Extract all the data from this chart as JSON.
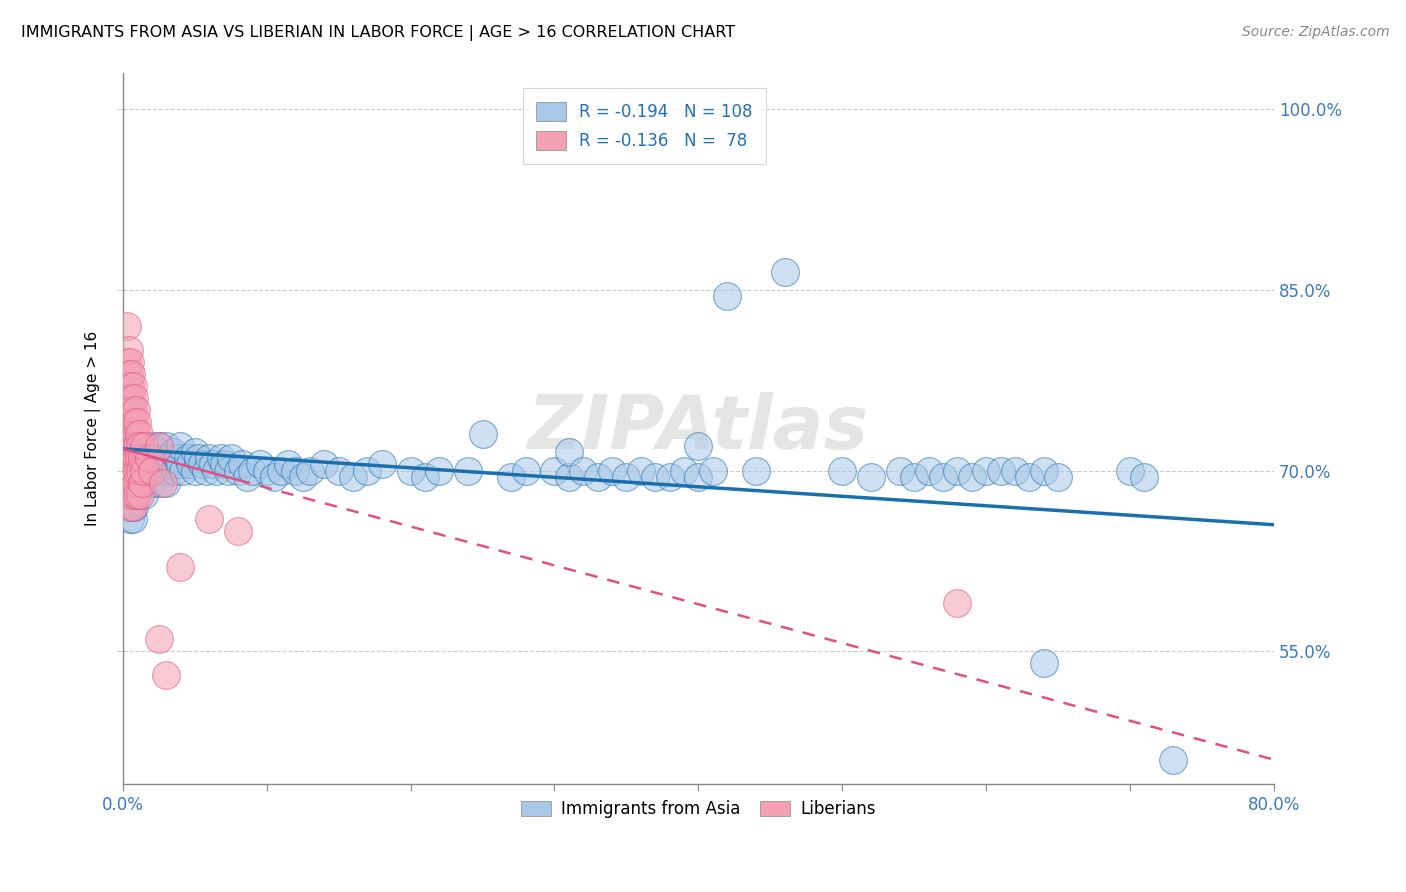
{
  "title": "IMMIGRANTS FROM ASIA VS LIBERIAN IN LABOR FORCE | AGE > 16 CORRELATION CHART",
  "source": "Source: ZipAtlas.com",
  "ylabel": "In Labor Force | Age > 16",
  "ytick_labels": [
    "55.0%",
    "70.0%",
    "85.0%",
    "100.0%"
  ],
  "legend_label_blue": "Immigrants from Asia",
  "legend_label_pink": "Liberians",
  "watermark": "ZIPAtlas",
  "blue_color": "#a8c8e8",
  "pink_color": "#f4a0b5",
  "trendline_blue": "#1a6faf",
  "trendline_pink": "#e05080",
  "xlim": [
    0.0,
    0.8
  ],
  "ylim": [
    0.44,
    1.03
  ],
  "ytick_positions": [
    0.55,
    0.7,
    0.85,
    1.0
  ],
  "blue_trend_x0": 0.0,
  "blue_trend_x1": 0.8,
  "blue_trend_y0": 0.718,
  "blue_trend_y1": 0.655,
  "pink_trend_x0": 0.0,
  "pink_trend_x1": 0.8,
  "pink_trend_y0": 0.718,
  "pink_trend_y1": 0.46,
  "blue_scatter": [
    [
      0.002,
      0.7
    ],
    [
      0.003,
      0.69
    ],
    [
      0.003,
      0.71
    ],
    [
      0.004,
      0.695
    ],
    [
      0.004,
      0.715
    ],
    [
      0.004,
      0.68
    ],
    [
      0.005,
      0.7
    ],
    [
      0.005,
      0.72
    ],
    [
      0.005,
      0.66
    ],
    [
      0.005,
      0.74
    ],
    [
      0.006,
      0.705
    ],
    [
      0.006,
      0.69
    ],
    [
      0.006,
      0.67
    ],
    [
      0.007,
      0.7
    ],
    [
      0.007,
      0.72
    ],
    [
      0.007,
      0.68
    ],
    [
      0.007,
      0.66
    ],
    [
      0.008,
      0.705
    ],
    [
      0.008,
      0.69
    ],
    [
      0.008,
      0.67
    ],
    [
      0.009,
      0.7
    ],
    [
      0.009,
      0.72
    ],
    [
      0.009,
      0.68
    ],
    [
      0.01,
      0.705
    ],
    [
      0.01,
      0.69
    ],
    [
      0.01,
      0.71
    ],
    [
      0.011,
      0.7
    ],
    [
      0.011,
      0.72
    ],
    [
      0.012,
      0.705
    ],
    [
      0.012,
      0.69
    ],
    [
      0.013,
      0.7
    ],
    [
      0.013,
      0.71
    ],
    [
      0.014,
      0.695
    ],
    [
      0.014,
      0.715
    ],
    [
      0.015,
      0.7
    ],
    [
      0.015,
      0.72
    ],
    [
      0.015,
      0.68
    ],
    [
      0.016,
      0.71
    ],
    [
      0.017,
      0.705
    ],
    [
      0.018,
      0.7
    ],
    [
      0.018,
      0.72
    ],
    [
      0.019,
      0.71
    ],
    [
      0.02,
      0.705
    ],
    [
      0.02,
      0.72
    ],
    [
      0.02,
      0.69
    ],
    [
      0.022,
      0.71
    ],
    [
      0.023,
      0.7
    ],
    [
      0.024,
      0.715
    ],
    [
      0.025,
      0.705
    ],
    [
      0.025,
      0.72
    ],
    [
      0.025,
      0.69
    ],
    [
      0.026,
      0.71
    ],
    [
      0.028,
      0.705
    ],
    [
      0.03,
      0.7
    ],
    [
      0.03,
      0.72
    ],
    [
      0.03,
      0.69
    ],
    [
      0.032,
      0.71
    ],
    [
      0.034,
      0.705
    ],
    [
      0.035,
      0.715
    ],
    [
      0.036,
      0.7
    ],
    [
      0.038,
      0.71
    ],
    [
      0.04,
      0.705
    ],
    [
      0.04,
      0.72
    ],
    [
      0.042,
      0.7
    ],
    [
      0.045,
      0.71
    ],
    [
      0.047,
      0.705
    ],
    [
      0.05,
      0.7
    ],
    [
      0.05,
      0.715
    ],
    [
      0.052,
      0.71
    ],
    [
      0.055,
      0.705
    ],
    [
      0.058,
      0.7
    ],
    [
      0.06,
      0.71
    ],
    [
      0.063,
      0.705
    ],
    [
      0.065,
      0.7
    ],
    [
      0.068,
      0.71
    ],
    [
      0.07,
      0.705
    ],
    [
      0.073,
      0.7
    ],
    [
      0.075,
      0.71
    ],
    [
      0.08,
      0.7
    ],
    [
      0.083,
      0.705
    ],
    [
      0.086,
      0.695
    ],
    [
      0.09,
      0.7
    ],
    [
      0.095,
      0.705
    ],
    [
      0.1,
      0.7
    ],
    [
      0.105,
      0.695
    ],
    [
      0.11,
      0.7
    ],
    [
      0.115,
      0.705
    ],
    [
      0.12,
      0.7
    ],
    [
      0.125,
      0.695
    ],
    [
      0.13,
      0.7
    ],
    [
      0.14,
      0.705
    ],
    [
      0.15,
      0.7
    ],
    [
      0.16,
      0.695
    ],
    [
      0.17,
      0.7
    ],
    [
      0.18,
      0.705
    ],
    [
      0.2,
      0.7
    ],
    [
      0.21,
      0.695
    ],
    [
      0.22,
      0.7
    ],
    [
      0.24,
      0.7
    ],
    [
      0.25,
      0.73
    ],
    [
      0.27,
      0.695
    ],
    [
      0.28,
      0.7
    ],
    [
      0.3,
      0.7
    ],
    [
      0.31,
      0.695
    ],
    [
      0.31,
      0.715
    ],
    [
      0.32,
      0.7
    ],
    [
      0.33,
      0.695
    ],
    [
      0.34,
      0.7
    ],
    [
      0.35,
      0.695
    ],
    [
      0.36,
      0.7
    ],
    [
      0.37,
      0.695
    ],
    [
      0.38,
      0.695
    ],
    [
      0.39,
      0.7
    ],
    [
      0.4,
      0.72
    ],
    [
      0.4,
      0.695
    ],
    [
      0.41,
      0.7
    ],
    [
      0.42,
      0.845
    ],
    [
      0.44,
      0.7
    ],
    [
      0.46,
      0.865
    ],
    [
      0.5,
      0.7
    ],
    [
      0.52,
      0.695
    ],
    [
      0.54,
      0.7
    ],
    [
      0.55,
      0.695
    ],
    [
      0.56,
      0.7
    ],
    [
      0.57,
      0.695
    ],
    [
      0.58,
      0.7
    ],
    [
      0.59,
      0.695
    ],
    [
      0.6,
      0.7
    ],
    [
      0.61,
      0.7
    ],
    [
      0.62,
      0.7
    ],
    [
      0.63,
      0.695
    ],
    [
      0.64,
      0.7
    ],
    [
      0.65,
      0.695
    ],
    [
      0.64,
      0.54
    ],
    [
      0.7,
      0.7
    ],
    [
      0.71,
      0.695
    ],
    [
      0.73,
      0.46
    ]
  ],
  "pink_scatter": [
    [
      0.003,
      0.82
    ],
    [
      0.003,
      0.79
    ],
    [
      0.004,
      0.8
    ],
    [
      0.004,
      0.78
    ],
    [
      0.004,
      0.76
    ],
    [
      0.005,
      0.79
    ],
    [
      0.005,
      0.77
    ],
    [
      0.005,
      0.75
    ],
    [
      0.005,
      0.73
    ],
    [
      0.005,
      0.71
    ],
    [
      0.005,
      0.69
    ],
    [
      0.005,
      0.67
    ],
    [
      0.006,
      0.78
    ],
    [
      0.006,
      0.76
    ],
    [
      0.006,
      0.74
    ],
    [
      0.006,
      0.72
    ],
    [
      0.006,
      0.7
    ],
    [
      0.006,
      0.68
    ],
    [
      0.007,
      0.77
    ],
    [
      0.007,
      0.75
    ],
    [
      0.007,
      0.73
    ],
    [
      0.007,
      0.71
    ],
    [
      0.007,
      0.69
    ],
    [
      0.007,
      0.67
    ],
    [
      0.008,
      0.76
    ],
    [
      0.008,
      0.74
    ],
    [
      0.008,
      0.72
    ],
    [
      0.008,
      0.7
    ],
    [
      0.008,
      0.68
    ],
    [
      0.009,
      0.75
    ],
    [
      0.009,
      0.73
    ],
    [
      0.009,
      0.71
    ],
    [
      0.009,
      0.69
    ],
    [
      0.01,
      0.74
    ],
    [
      0.01,
      0.72
    ],
    [
      0.01,
      0.7
    ],
    [
      0.01,
      0.68
    ],
    [
      0.011,
      0.73
    ],
    [
      0.011,
      0.71
    ],
    [
      0.012,
      0.72
    ],
    [
      0.012,
      0.7
    ],
    [
      0.012,
      0.68
    ],
    [
      0.013,
      0.71
    ],
    [
      0.013,
      0.69
    ],
    [
      0.015,
      0.72
    ],
    [
      0.015,
      0.7
    ],
    [
      0.018,
      0.71
    ],
    [
      0.02,
      0.7
    ],
    [
      0.025,
      0.72
    ],
    [
      0.028,
      0.69
    ],
    [
      0.025,
      0.56
    ],
    [
      0.03,
      0.53
    ],
    [
      0.04,
      0.62
    ],
    [
      0.06,
      0.66
    ],
    [
      0.08,
      0.65
    ],
    [
      0.58,
      0.59
    ]
  ]
}
